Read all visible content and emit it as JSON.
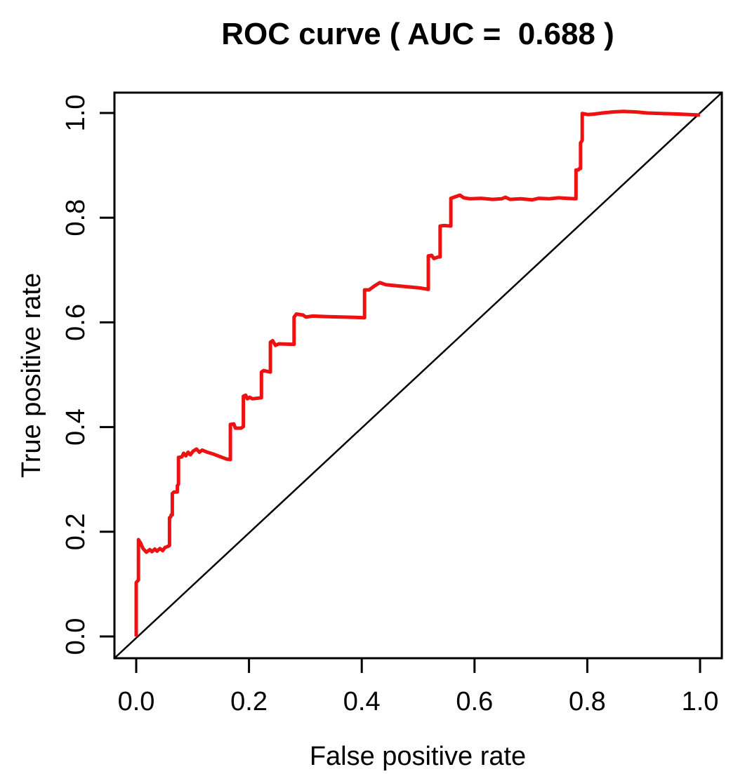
{
  "window": {
    "background_color": "#FFFFFF"
  },
  "colors": {
    "roc_curve": "#EE1111",
    "diagonal": "#000000",
    "axis": "#000000",
    "text": "#000000",
    "background": "#FFFFFF"
  },
  "chart_data": {
    "type": "line",
    "title": "ROC curve ( AUC =  0.688 )",
    "xlabel": "False positive rate",
    "ylabel": "True positive rate",
    "auc": 0.688,
    "xlim": [
      0,
      1
    ],
    "ylim": [
      0,
      1
    ],
    "grid": false,
    "legend": "none",
    "x_ticks": [
      0.0,
      0.2,
      0.4,
      0.6,
      0.8,
      1.0
    ],
    "y_ticks": [
      0.0,
      0.2,
      0.4,
      0.6,
      0.8,
      1.0
    ],
    "x_tick_labels": [
      "0.0",
      "0.2",
      "0.4",
      "0.6",
      "0.8",
      "1.0"
    ],
    "y_tick_labels": [
      "0.0",
      "0.2",
      "0.4",
      "0.6",
      "0.8",
      "1.0"
    ],
    "series": [
      {
        "name": "ROC curve",
        "style": "step-line",
        "color": "#EE1111",
        "linewidth": 5,
        "points": [
          [
            0.0,
            0.0
          ],
          [
            0.0,
            0.103
          ],
          [
            0.004,
            0.108
          ],
          [
            0.004,
            0.185
          ],
          [
            0.008,
            0.178
          ],
          [
            0.012,
            0.168
          ],
          [
            0.018,
            0.161
          ],
          [
            0.024,
            0.166
          ],
          [
            0.028,
            0.162
          ],
          [
            0.033,
            0.167
          ],
          [
            0.037,
            0.163
          ],
          [
            0.042,
            0.168
          ],
          [
            0.047,
            0.164
          ],
          [
            0.051,
            0.17
          ],
          [
            0.056,
            0.172
          ],
          [
            0.059,
            0.174
          ],
          [
            0.059,
            0.227
          ],
          [
            0.061,
            0.228
          ],
          [
            0.062,
            0.232
          ],
          [
            0.064,
            0.232
          ],
          [
            0.064,
            0.273
          ],
          [
            0.067,
            0.276
          ],
          [
            0.073,
            0.276
          ],
          [
            0.073,
            0.288
          ],
          [
            0.075,
            0.291
          ],
          [
            0.075,
            0.342
          ],
          [
            0.081,
            0.343
          ],
          [
            0.084,
            0.35
          ],
          [
            0.088,
            0.345
          ],
          [
            0.092,
            0.352
          ],
          [
            0.096,
            0.347
          ],
          [
            0.101,
            0.354
          ],
          [
            0.107,
            0.358
          ],
          [
            0.112,
            0.352
          ],
          [
            0.117,
            0.356
          ],
          [
            0.126,
            0.352
          ],
          [
            0.138,
            0.348
          ],
          [
            0.15,
            0.343
          ],
          [
            0.16,
            0.339
          ],
          [
            0.167,
            0.338
          ],
          [
            0.167,
            0.405
          ],
          [
            0.173,
            0.406
          ],
          [
            0.176,
            0.398
          ],
          [
            0.186,
            0.398
          ],
          [
            0.19,
            0.401
          ],
          [
            0.19,
            0.459
          ],
          [
            0.194,
            0.461
          ],
          [
            0.197,
            0.454
          ],
          [
            0.201,
            0.457
          ],
          [
            0.206,
            0.454
          ],
          [
            0.222,
            0.456
          ],
          [
            0.222,
            0.505
          ],
          [
            0.226,
            0.508
          ],
          [
            0.238,
            0.505
          ],
          [
            0.238,
            0.562
          ],
          [
            0.242,
            0.565
          ],
          [
            0.247,
            0.556
          ],
          [
            0.253,
            0.559
          ],
          [
            0.28,
            0.558
          ],
          [
            0.28,
            0.61
          ],
          [
            0.284,
            0.616
          ],
          [
            0.296,
            0.614
          ],
          [
            0.301,
            0.61
          ],
          [
            0.313,
            0.612
          ],
          [
            0.34,
            0.611
          ],
          [
            0.37,
            0.61
          ],
          [
            0.405,
            0.609
          ],
          [
            0.405,
            0.662
          ],
          [
            0.413,
            0.662
          ],
          [
            0.423,
            0.67
          ],
          [
            0.432,
            0.676
          ],
          [
            0.443,
            0.672
          ],
          [
            0.462,
            0.67
          ],
          [
            0.482,
            0.668
          ],
          [
            0.502,
            0.666
          ],
          [
            0.518,
            0.663
          ],
          [
            0.518,
            0.727
          ],
          [
            0.524,
            0.728
          ],
          [
            0.528,
            0.722
          ],
          [
            0.536,
            0.725
          ],
          [
            0.539,
            0.725
          ],
          [
            0.539,
            0.784
          ],
          [
            0.546,
            0.785
          ],
          [
            0.558,
            0.784
          ],
          [
            0.558,
            0.837
          ],
          [
            0.566,
            0.84
          ],
          [
            0.574,
            0.843
          ],
          [
            0.581,
            0.838
          ],
          [
            0.592,
            0.836
          ],
          [
            0.612,
            0.837
          ],
          [
            0.632,
            0.835
          ],
          [
            0.648,
            0.836
          ],
          [
            0.655,
            0.839
          ],
          [
            0.663,
            0.835
          ],
          [
            0.682,
            0.836
          ],
          [
            0.702,
            0.834
          ],
          [
            0.714,
            0.837
          ],
          [
            0.732,
            0.836
          ],
          [
            0.749,
            0.838
          ],
          [
            0.763,
            0.837
          ],
          [
            0.78,
            0.836
          ],
          [
            0.78,
            0.891
          ],
          [
            0.784,
            0.891
          ],
          [
            0.786,
            0.894
          ],
          [
            0.788,
            0.894
          ],
          [
            0.788,
            0.943
          ],
          [
            0.79,
            0.946
          ],
          [
            0.791,
            0.948
          ],
          [
            0.791,
            0.999
          ],
          [
            0.801,
            0.997
          ],
          [
            0.813,
            0.998
          ],
          [
            0.827,
            1.0
          ],
          [
            0.846,
            1.002
          ],
          [
            0.865,
            1.003
          ],
          [
            0.886,
            1.002
          ],
          [
            0.906,
            1.0
          ],
          [
            0.931,
            0.999
          ],
          [
            0.961,
            0.998
          ],
          [
            1.0,
            0.996
          ]
        ]
      },
      {
        "name": "chance diagonal",
        "style": "straight-line",
        "color": "#000000",
        "linewidth": 2.5,
        "points": [
          [
            0,
            0
          ],
          [
            1,
            1
          ]
        ]
      }
    ]
  }
}
